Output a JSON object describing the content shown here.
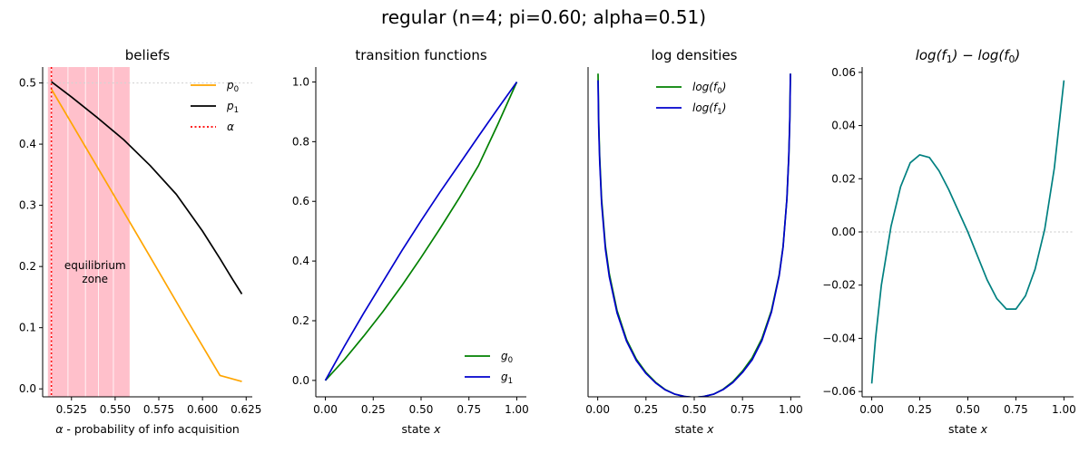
{
  "figure": {
    "title": "regular (n=4; pi=0.60; alpha=0.51)"
  },
  "chart_data": [
    {
      "type": "line",
      "title": "beliefs",
      "xlabel": "α - probability of info acquisition",
      "ylabel": "",
      "xlim": [
        0.5085,
        0.6285
      ],
      "ylim": [
        -0.013,
        0.526
      ],
      "xticks": [
        "0.525",
        "0.550",
        "0.575",
        "0.600",
        "0.625"
      ],
      "xtick_values": [
        0.525,
        0.55,
        0.575,
        0.6,
        0.625
      ],
      "yticks": [
        "0.0",
        "0.1",
        "0.2",
        "0.3",
        "0.4",
        "0.5"
      ],
      "ytick_values": [
        0,
        0.1,
        0.2,
        0.3,
        0.4,
        0.5
      ],
      "series": [
        {
          "name": "p_0",
          "color": "#ffa500",
          "style": "solid",
          "x": [
            0.5135,
            0.53,
            0.55,
            0.57,
            0.59,
            0.61,
            0.6225
          ],
          "y": [
            0.49,
            0.41,
            0.313,
            0.216,
            0.118,
            0.022,
            0.012
          ]
        },
        {
          "name": "p_1",
          "color": "#000000",
          "style": "solid",
          "x": [
            0.5135,
            0.525,
            0.54,
            0.555,
            0.57,
            0.585,
            0.6,
            0.61,
            0.617,
            0.6225
          ],
          "y": [
            0.502,
            0.477,
            0.443,
            0.407,
            0.365,
            0.318,
            0.258,
            0.213,
            0.18,
            0.155
          ]
        },
        {
          "name": "α",
          "color": "#ff0000",
          "style": "dotted",
          "vertical_x": 0.5135
        }
      ],
      "shaded_region": {
        "x": [
          0.5115,
          0.5585
        ],
        "color": "#ffc0cb",
        "separators": [
          0.5135,
          0.523,
          0.533,
          0.5405,
          0.549,
          0.5585
        ]
      },
      "reference_line": {
        "y": 0.5,
        "color": "#d3d3d3",
        "style": "dotted"
      },
      "annotation": {
        "line1": "equilibrium",
        "line2": "zone",
        "x": 0.5385,
        "y": 0.19
      },
      "legend": {
        "placement": "top-right",
        "entries": [
          {
            "base": "p",
            "sub": "0",
            "color": "#ffa500",
            "style": "solid"
          },
          {
            "base": "p",
            "sub": "1",
            "color": "#000000",
            "style": "solid"
          },
          {
            "base": "α",
            "sub": "",
            "color": "#ff0000",
            "style": "dotted"
          }
        ]
      }
    },
    {
      "type": "line",
      "title": "transition functions",
      "xlabel": "state x",
      "ylabel": "",
      "xlim": [
        -0.05,
        1.05
      ],
      "ylim": [
        -0.055,
        1.05
      ],
      "xticks": [
        "0.00",
        "0.25",
        "0.50",
        "0.75",
        "1.00"
      ],
      "xtick_values": [
        0,
        0.25,
        0.5,
        0.75,
        1
      ],
      "yticks": [
        "0.0",
        "0.2",
        "0.4",
        "0.6",
        "0.8",
        "1.0"
      ],
      "ytick_values": [
        0,
        0.2,
        0.4,
        0.6,
        0.8,
        1.0
      ],
      "series": [
        {
          "name": "g_0",
          "color": "#008000",
          "style": "solid",
          "x": [
            0,
            0.1,
            0.2,
            0.3,
            0.4,
            0.5,
            0.6,
            0.7,
            0.8,
            0.9,
            1.0
          ],
          "y": [
            0,
            0.07,
            0.148,
            0.23,
            0.318,
            0.412,
            0.51,
            0.612,
            0.72,
            0.857,
            1.0
          ]
        },
        {
          "name": "g_1",
          "color": "#0000cd",
          "style": "solid",
          "x": [
            0,
            0.1,
            0.2,
            0.3,
            0.4,
            0.5,
            0.6,
            0.7,
            0.8,
            0.9,
            1.0
          ],
          "y": [
            0,
            0.115,
            0.225,
            0.33,
            0.435,
            0.535,
            0.632,
            0.725,
            0.818,
            0.91,
            1.0
          ]
        }
      ],
      "legend": {
        "placement": "bottom-right",
        "entries": [
          {
            "base": "g",
            "sub": "0",
            "color": "#008000",
            "style": "solid"
          },
          {
            "base": "g",
            "sub": "1",
            "color": "#0000cd",
            "style": "solid"
          }
        ]
      }
    },
    {
      "type": "line",
      "title": "log densities",
      "xlabel": "state x",
      "ylabel": "",
      "xlim": [
        -0.05,
        1.05
      ],
      "ylim": [
        0.0,
        1.0
      ],
      "xticks": [
        "0.00",
        "0.25",
        "0.50",
        "0.75",
        "1.00"
      ],
      "xtick_values": [
        0,
        0.25,
        0.5,
        0.75,
        1
      ],
      "yticks": [],
      "ytick_values": [],
      "series": [
        {
          "name": "log(f_0)",
          "color": "#008000",
          "style": "solid",
          "x": [
            0.0015,
            0.005,
            0.01,
            0.02,
            0.04,
            0.06,
            0.1,
            0.15,
            0.2,
            0.25,
            0.3,
            0.35,
            0.4,
            0.45,
            0.5,
            0.55,
            0.6,
            0.65,
            0.7,
            0.75,
            0.8,
            0.85,
            0.9,
            0.94,
            0.96,
            0.98,
            0.99,
            0.995,
            0.9985
          ],
          "y": [
            0.98,
            0.84,
            0.73,
            0.6,
            0.458,
            0.373,
            0.262,
            0.173,
            0.114,
            0.074,
            0.044,
            0.022,
            0.008,
            0.001,
            -0.002,
            0.001,
            0.008,
            0.023,
            0.046,
            0.078,
            0.118,
            0.176,
            0.262,
            0.37,
            0.456,
            0.6,
            0.73,
            0.84,
            0.98
          ]
        },
        {
          "name": "log(f_1)",
          "color": "#0000cd",
          "style": "solid",
          "x": [
            0.0015,
            0.005,
            0.01,
            0.02,
            0.04,
            0.06,
            0.1,
            0.15,
            0.2,
            0.25,
            0.3,
            0.35,
            0.4,
            0.45,
            0.5,
            0.55,
            0.6,
            0.65,
            0.7,
            0.75,
            0.8,
            0.85,
            0.9,
            0.94,
            0.96,
            0.98,
            0.99,
            0.995,
            0.9985
          ],
          "y": [
            0.96,
            0.82,
            0.715,
            0.588,
            0.448,
            0.364,
            0.255,
            0.168,
            0.11,
            0.071,
            0.042,
            0.021,
            0.008,
            0.001,
            -0.002,
            0.001,
            0.008,
            0.022,
            0.043,
            0.074,
            0.112,
            0.17,
            0.257,
            0.367,
            0.454,
            0.6,
            0.73,
            0.84,
            0.98
          ]
        }
      ],
      "legend": {
        "placement": "top-center",
        "entries": [
          {
            "base": "log(f",
            "sub": "0",
            "tail": ")",
            "color": "#008000",
            "style": "solid"
          },
          {
            "base": "log(f",
            "sub": "1",
            "tail": ")",
            "color": "#0000cd",
            "style": "solid"
          }
        ]
      }
    },
    {
      "type": "line",
      "title_parts": {
        "a": "log(f",
        "a_sub": "1",
        "b": ") − log(f",
        "b_sub": "0",
        "c": ")"
      },
      "xlabel": "state x",
      "ylabel": "",
      "xlim": [
        -0.05,
        1.05
      ],
      "ylim": [
        -0.062,
        0.062
      ],
      "xticks": [
        "0.00",
        "0.25",
        "0.50",
        "0.75",
        "1.00"
      ],
      "xtick_values": [
        0,
        0.25,
        0.5,
        0.75,
        1
      ],
      "yticks": [
        "−0.06",
        "−0.04",
        "−0.02",
        "0.00",
        "0.02",
        "0.04",
        "0.06"
      ],
      "ytick_values": [
        -0.06,
        -0.04,
        -0.02,
        0,
        0.02,
        0.04,
        0.06
      ],
      "series": [
        {
          "name": "",
          "color": "#008080",
          "style": "solid",
          "x": [
            0,
            0.02,
            0.05,
            0.1,
            0.15,
            0.2,
            0.25,
            0.3,
            0.35,
            0.4,
            0.45,
            0.5,
            0.55,
            0.6,
            0.65,
            0.7,
            0.75,
            0.8,
            0.85,
            0.9,
            0.95,
            1.0
          ],
          "y": [
            -0.057,
            -0.04,
            -0.02,
            0.002,
            0.017,
            0.026,
            0.029,
            0.028,
            0.023,
            0.016,
            0.008,
            0.0,
            -0.009,
            -0.018,
            -0.025,
            -0.029,
            -0.029,
            -0.024,
            -0.014,
            0.001,
            0.024,
            0.057
          ]
        }
      ],
      "reference_line": {
        "y": 0.0,
        "color": "#d3d3d3",
        "style": "dotted"
      },
      "legend": {
        "placement": "none",
        "entries": []
      }
    }
  ]
}
